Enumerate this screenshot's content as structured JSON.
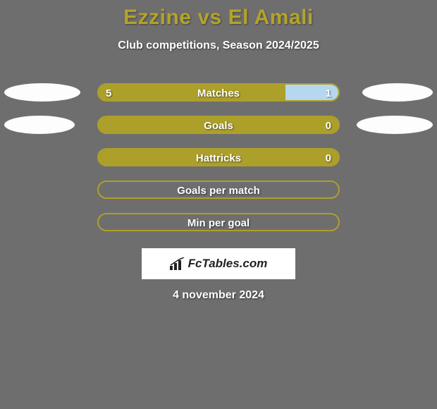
{
  "background_color": "#6e6e6e",
  "title": "Ezzine vs El Amali",
  "title_color": "#b3a32b",
  "subtitle": "Club competitions, Season 2024/2025",
  "text_color": "#ffffff",
  "date": "4 november 2024",
  "bar": {
    "border_color": "#ada02a",
    "left_fill": "#ada02a",
    "right_fill_alt": "#ada02a",
    "right_matches_fill": "#b6d7f0"
  },
  "avatars": [
    {
      "left_width": 108,
      "right_width": 100
    },
    {
      "left_width": 100,
      "right_width": 108
    }
  ],
  "rows": [
    {
      "label": "Matches",
      "left_value": "5",
      "right_value": "1",
      "left_pct": 78,
      "right_pct": 22,
      "left_color": "#ada02a",
      "right_color": "#b6d7f0",
      "show_values": true,
      "show_avatars": true,
      "avatar_index": 0
    },
    {
      "label": "Goals",
      "left_value": "0",
      "right_value": "0",
      "left_pct": 0,
      "right_pct": 100,
      "left_color": "#ada02a",
      "right_color": "#ada02a",
      "show_values": "right",
      "show_avatars": true,
      "avatar_index": 1
    },
    {
      "label": "Hattricks",
      "left_value": "0",
      "right_value": "0",
      "left_pct": 0,
      "right_pct": 100,
      "left_color": "#ada02a",
      "right_color": "#ada02a",
      "show_values": "right",
      "show_avatars": false
    },
    {
      "label": "Goals per match",
      "left_value": "",
      "right_value": "",
      "left_pct": 0,
      "right_pct": 0,
      "left_color": "#ada02a",
      "right_color": "#ada02a",
      "show_values": false,
      "show_avatars": false
    },
    {
      "label": "Min per goal",
      "left_value": "",
      "right_value": "",
      "left_pct": 0,
      "right_pct": 0,
      "left_color": "#ada02a",
      "right_color": "#ada02a",
      "show_values": false,
      "show_avatars": false
    }
  ],
  "logo_text": "FcTables.com"
}
